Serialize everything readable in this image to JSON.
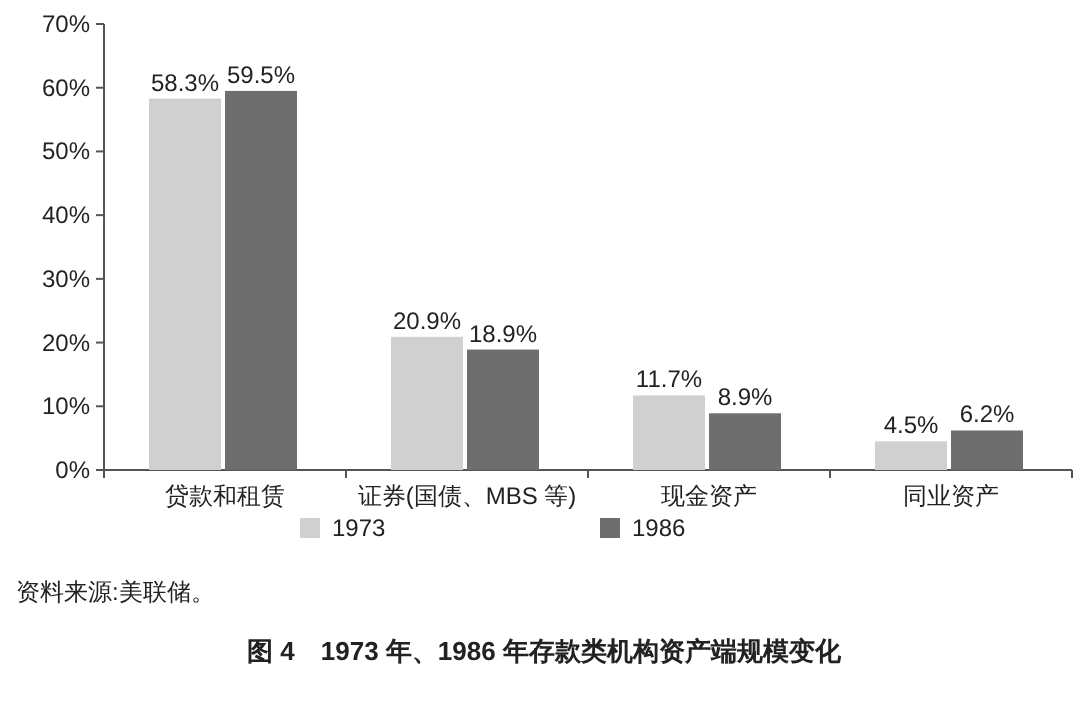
{
  "chart_data": {
    "type": "bar",
    "title": "图 4　1973 年、1986 年存款类机构资产端规模变化",
    "annotations": [
      "资料来源:美联储。"
    ],
    "categories": [
      "贷款和租赁",
      "证券(国债、MBS 等)",
      "现金资产",
      "同业资产"
    ],
    "series": [
      {
        "name": "1973",
        "color": "#d0d0d0",
        "values": [
          58.3,
          20.9,
          11.7,
          4.5
        ],
        "value_labels": [
          "58.3%",
          "20.9%",
          "11.7%",
          "4.5%"
        ]
      },
      {
        "name": "1986",
        "color": "#6e6e6e",
        "values": [
          59.5,
          18.9,
          8.9,
          6.2
        ],
        "value_labels": [
          "59.5%",
          "18.9%",
          "8.9%",
          "6.2%"
        ]
      }
    ],
    "ylim": [
      0,
      70
    ],
    "yticks": [
      {
        "value": 0,
        "label": "0%"
      },
      {
        "value": 10,
        "label": "10%"
      },
      {
        "value": 20,
        "label": "20%"
      },
      {
        "value": 30,
        "label": "30%"
      },
      {
        "value": 40,
        "label": "40%"
      },
      {
        "value": 50,
        "label": "50%"
      },
      {
        "value": 60,
        "label": "60%"
      },
      {
        "value": 70,
        "label": "70%"
      }
    ],
    "legend": "bottom",
    "grid": false
  }
}
